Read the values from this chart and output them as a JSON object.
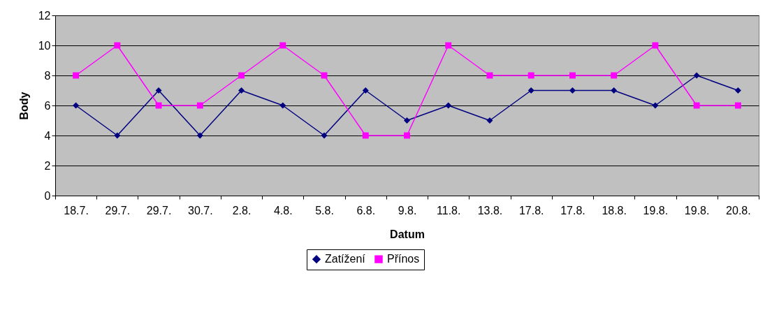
{
  "chart_data": {
    "type": "line",
    "xlabel": "Datum",
    "ylabel": "Body",
    "categories": [
      "18.7.",
      "29.7.",
      "29.7.",
      "30.7.",
      "2.8.",
      "4.8.",
      "5.8.",
      "6.8.",
      "9.8.",
      "11.8.",
      "13.8.",
      "17.8.",
      "17.8.",
      "18.8.",
      "19.8.",
      "19.8.",
      "20.8."
    ],
    "series": [
      {
        "name": "Zatížení",
        "color": "#000080",
        "marker": "diamond",
        "values": [
          6,
          4,
          7,
          4,
          7,
          6,
          4,
          7,
          5,
          6,
          5,
          7,
          7,
          7,
          6,
          8,
          7
        ]
      },
      {
        "name": "Přínos",
        "color": "#ff00ff",
        "marker": "square",
        "values": [
          8,
          10,
          6,
          6,
          8,
          10,
          8,
          4,
          4,
          10,
          8,
          8,
          8,
          8,
          10,
          6,
          6
        ]
      }
    ],
    "ylim": [
      0,
      12
    ],
    "yticks": [
      0,
      2,
      4,
      6,
      8,
      10,
      12
    ],
    "grid": "y",
    "legend": "bottom"
  }
}
